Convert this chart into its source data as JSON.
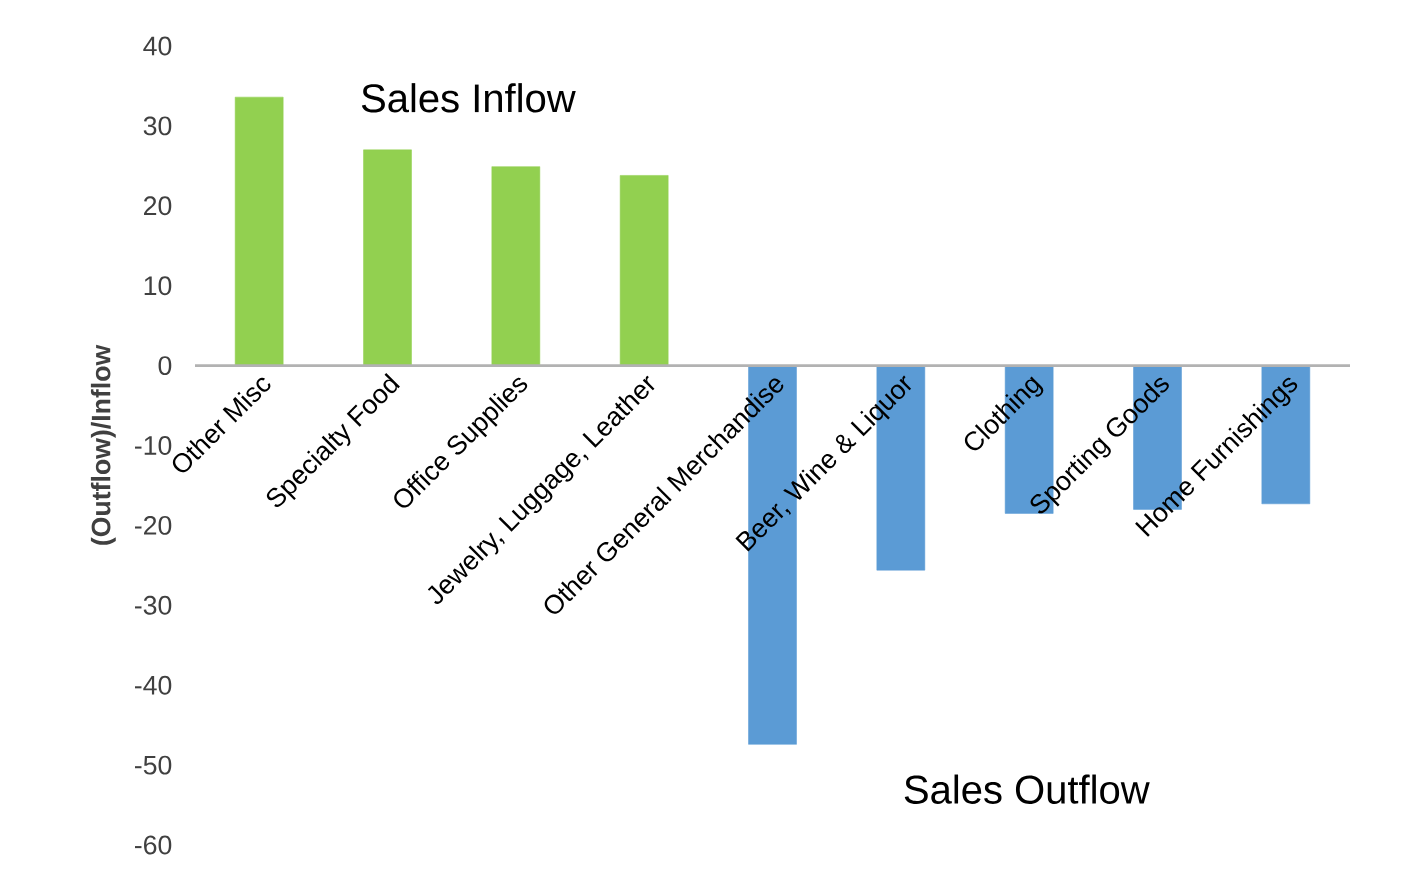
{
  "chart_data": {
    "type": "bar",
    "categories": [
      "Other Misc",
      "Specialty Food",
      "Office Supplies",
      "Jewelry, Luggage, Leather",
      "Other General Merchandise",
      "Beer, Wine & Liquor",
      "Clothing",
      "Sporting Goods",
      "Home Furnishings"
    ],
    "values": [
      33.6,
      27,
      24.9,
      23.8,
      -47.4,
      -25.6,
      -18.5,
      -18,
      -17.3
    ],
    "colors": [
      "#92d050",
      "#92d050",
      "#92d050",
      "#92d050",
      "#5b9bd5",
      "#5b9bd5",
      "#5b9bd5",
      "#5b9bd5",
      "#5b9bd5"
    ],
    "ylim": [
      -60,
      40
    ],
    "yticks": [
      -60,
      -50,
      -40,
      -30,
      -20,
      -10,
      0,
      10,
      20,
      30,
      40
    ],
    "ylabel": "(Outflow)/Inflow",
    "annotations": [
      "Sales Inflow",
      "Sales Outflow"
    ],
    "grid": false
  }
}
